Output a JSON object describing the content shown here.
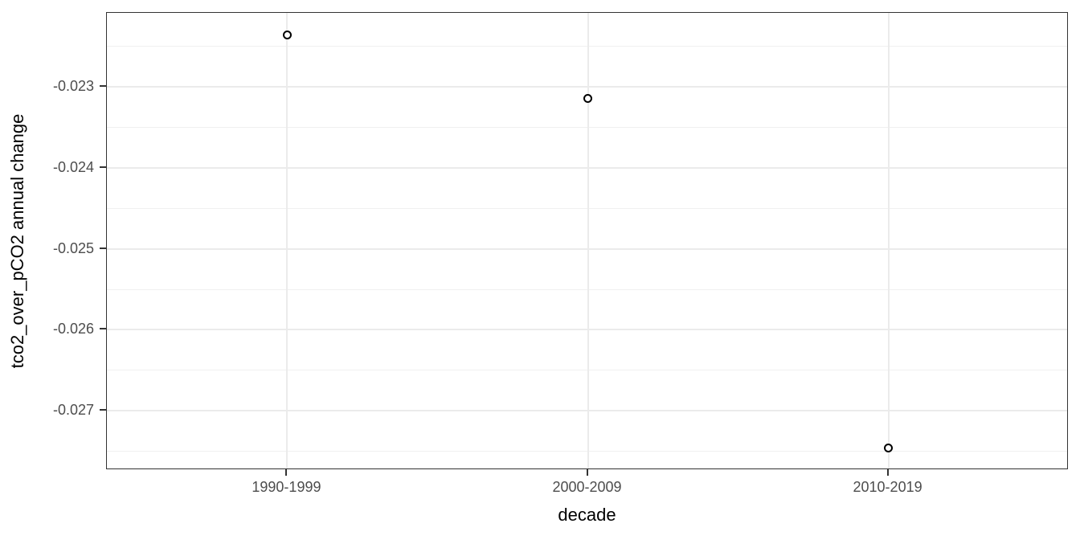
{
  "figure": {
    "background_color": "#ffffff",
    "panel_background_color": "#ffffff",
    "panel_border_color": "#333333",
    "grid_major_color": "#ebebeb",
    "grid_minor_color": "#f0f0f0",
    "tick_color": "#333333",
    "tick_label_color": "#4d4d4d",
    "axis_title_color": "#000000",
    "point_stroke_color": "#000000"
  },
  "chart_data": {
    "type": "scatter",
    "title": "",
    "xlabel": "decade",
    "ylabel": "tco2_over_pCO2 annual change",
    "categories": [
      "1990-1999",
      "2000-2009",
      "2010-2019"
    ],
    "values": [
      -0.02236,
      -0.02315,
      -0.02746
    ],
    "marker": "open-circle",
    "grid": true,
    "legend_position": "none",
    "ylim": [
      -0.02773,
      -0.02209
    ],
    "y_major_ticks": [
      -0.023,
      -0.024,
      -0.025,
      -0.026,
      -0.027
    ],
    "y_major_tick_labels": [
      "-0.023",
      "-0.024",
      "-0.025",
      "-0.026",
      "-0.027"
    ],
    "y_minor_ticks": [
      -0.0225,
      -0.0235,
      -0.0245,
      -0.0255,
      -0.0265,
      -0.0275
    ]
  }
}
